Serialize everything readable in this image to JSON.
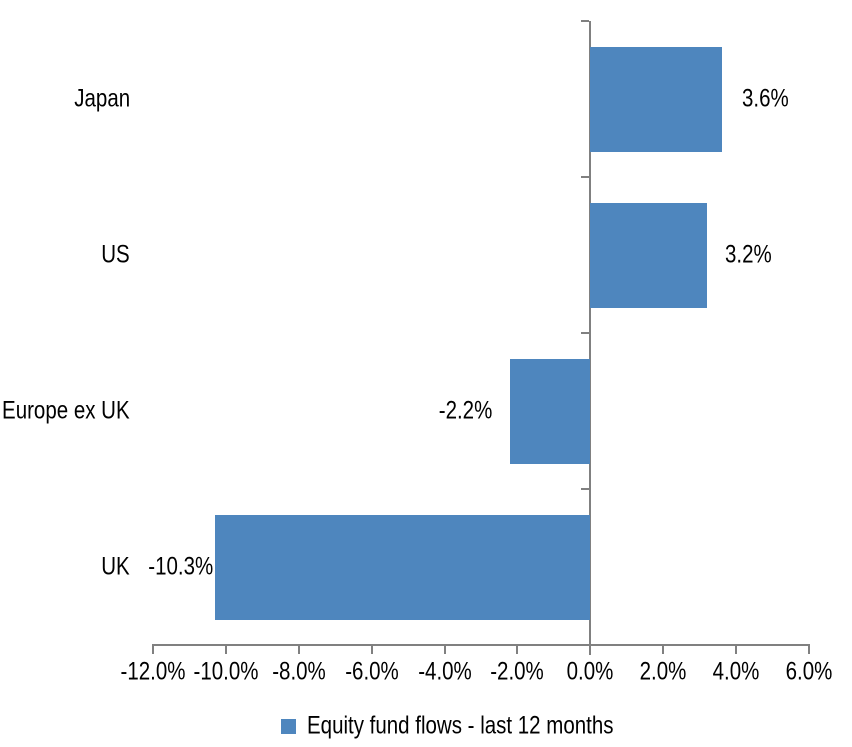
{
  "chart_data": {
    "type": "bar",
    "orientation": "horizontal",
    "title": "",
    "xlabel": "",
    "ylabel": "",
    "categories": [
      "Japan",
      "US",
      "Europe ex UK",
      "UK"
    ],
    "values": [
      3.6,
      3.2,
      -2.2,
      -10.3
    ],
    "value_labels": [
      "3.6%",
      "3.2%",
      "-2.2%",
      "-10.3%"
    ],
    "series_name": "Equity fund flows - last 12 months",
    "xlim": [
      -12,
      6
    ],
    "x_tick_step": 2,
    "x_tick_labels": [
      "-12.0%",
      "-10.0%",
      "-8.0%",
      "-6.0%",
      "-4.0%",
      "-2.0%",
      "0.0%",
      "2.0%",
      "4.0%",
      "6.0%"
    ],
    "grid": false,
    "legend_position": "bottom",
    "bar_color": "#4E86BE",
    "axis_color": "#808080",
    "text_color": "#000000"
  },
  "legend": {
    "label": "Equity fund flows - last 12 months"
  }
}
